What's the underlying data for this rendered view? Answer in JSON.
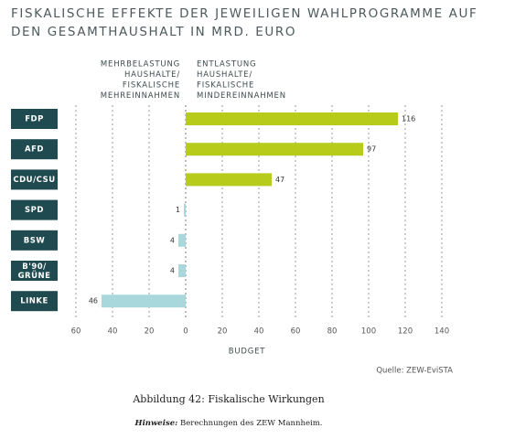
{
  "chart_data": {
    "type": "bar",
    "orientation": "horizontal",
    "title_lines": [
      "FISKALISCHE EFFEKTE DER JEWEILIGEN WAHLPROGRAMME AUF",
      "DEN GESAMTHAUSHALT IN MRD. EURO"
    ],
    "left_header": [
      "MEHRBELASTUNG",
      "HAUSHALTE/",
      "FISKALISCHE",
      "MEHREINNAHMEN"
    ],
    "right_header": [
      "ENTLASTUNG",
      "HAUSHALTE/",
      "FISKALISCHE",
      "MINDEREINNAHMEN"
    ],
    "categories": [
      "FDP",
      "AFD",
      "CDU/CSU",
      "SPD",
      "BSW",
      "B'90/GRÜNE",
      "LINKE"
    ],
    "values": [
      116,
      97,
      47,
      -1,
      -4,
      -4,
      -46
    ],
    "value_labels": [
      "116",
      "97",
      "47",
      "1",
      "4",
      "4",
      "46"
    ],
    "positive_color": "#b7cc1a",
    "negative_color": "#a8d8dc",
    "category_box_color": "#1f4a50",
    "xlim": [
      -60,
      140
    ],
    "xticks": [
      {
        "value": -60,
        "label": "60"
      },
      {
        "value": -40,
        "label": "40"
      },
      {
        "value": -20,
        "label": "20"
      },
      0,
      20,
      40,
      60,
      80,
      100,
      120,
      140
    ],
    "grid": true,
    "xlabel": "BUDGET",
    "source": "Quelle: ZEW-EviSTA"
  },
  "caption": "Abbildung 42: Fiskalische Wirkungen",
  "note": {
    "label": "Hinweise:",
    "text": "Berechnungen des ZEW Mannheim."
  }
}
